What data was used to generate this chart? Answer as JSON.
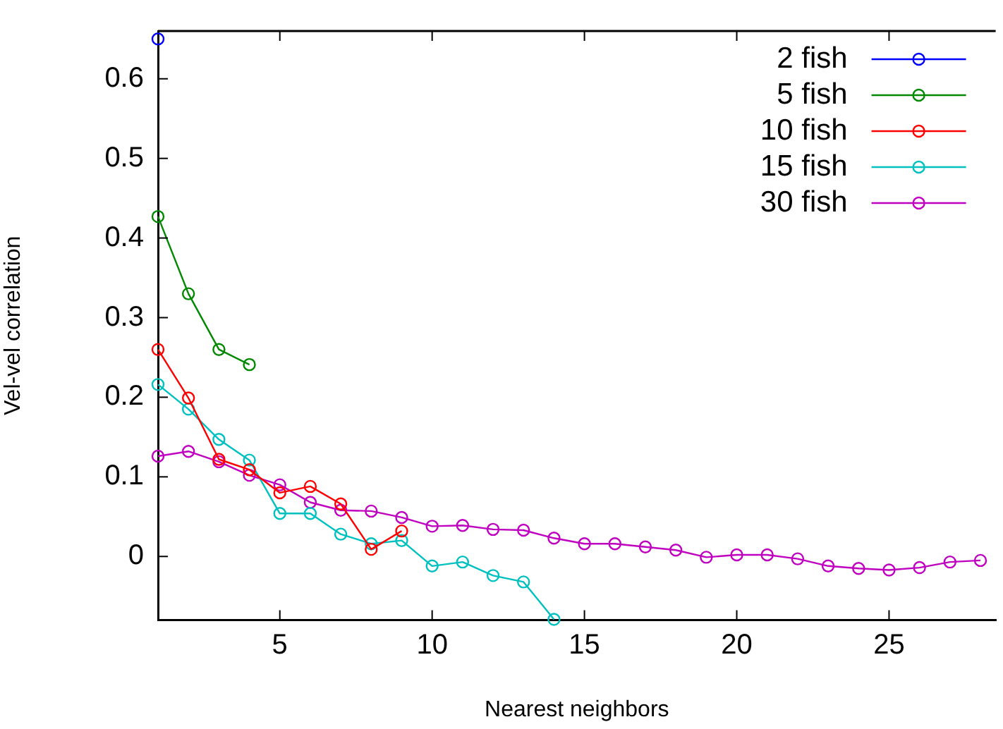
{
  "chart_data": {
    "type": "line",
    "xlabel": "Nearest neighbors",
    "ylabel": "Vel-vel correlation",
    "xlim": [
      1,
      28.5
    ],
    "ylim": [
      -0.08,
      0.66
    ],
    "xticks": [
      5,
      10,
      15,
      20,
      25
    ],
    "yticks": [
      0,
      0.1,
      0.2,
      0.3,
      0.4,
      0.5,
      0.6
    ],
    "legend": "top right",
    "marker": "circle",
    "line_style": "solid",
    "series": [
      {
        "name": "2 fish",
        "color": "#0000ff",
        "x": [
          1
        ],
        "values": [
          0.65
        ]
      },
      {
        "name": "5 fish",
        "color": "#008800",
        "x": [
          1,
          2,
          3,
          4
        ],
        "values": [
          0.427,
          0.33,
          0.26,
          0.241
        ]
      },
      {
        "name": "10 fish",
        "color": "#ff0000",
        "x": [
          1,
          2,
          3,
          4,
          5,
          6,
          7,
          8,
          9
        ],
        "values": [
          0.26,
          0.199,
          0.122,
          0.109,
          0.08,
          0.088,
          0.066,
          0.009,
          0.032
        ]
      },
      {
        "name": "15 fish",
        "color": "#00c0c0",
        "x": [
          1,
          2,
          3,
          4,
          5,
          6,
          7,
          8,
          9,
          10,
          11,
          12,
          13,
          14
        ],
        "values": [
          0.216,
          0.185,
          0.147,
          0.121,
          0.054,
          0.054,
          0.028,
          0.016,
          0.02,
          -0.012,
          -0.007,
          -0.024,
          -0.032,
          -0.079
        ]
      },
      {
        "name": "30 fish",
        "color": "#c000c0",
        "x": [
          1,
          2,
          3,
          4,
          5,
          6,
          7,
          8,
          9,
          10,
          11,
          12,
          13,
          14,
          15,
          16,
          17,
          18,
          19,
          20,
          21,
          22,
          23,
          24,
          25,
          26,
          27,
          28
        ],
        "values": [
          0.126,
          0.132,
          0.119,
          0.102,
          0.09,
          0.068,
          0.058,
          0.057,
          0.049,
          0.038,
          0.039,
          0.034,
          0.033,
          0.023,
          0.016,
          0.016,
          0.012,
          0.008,
          -0.001,
          0.002,
          0.002,
          -0.003,
          -0.012,
          -0.015,
          -0.017,
          -0.014,
          -0.007,
          -0.005
        ]
      }
    ]
  }
}
